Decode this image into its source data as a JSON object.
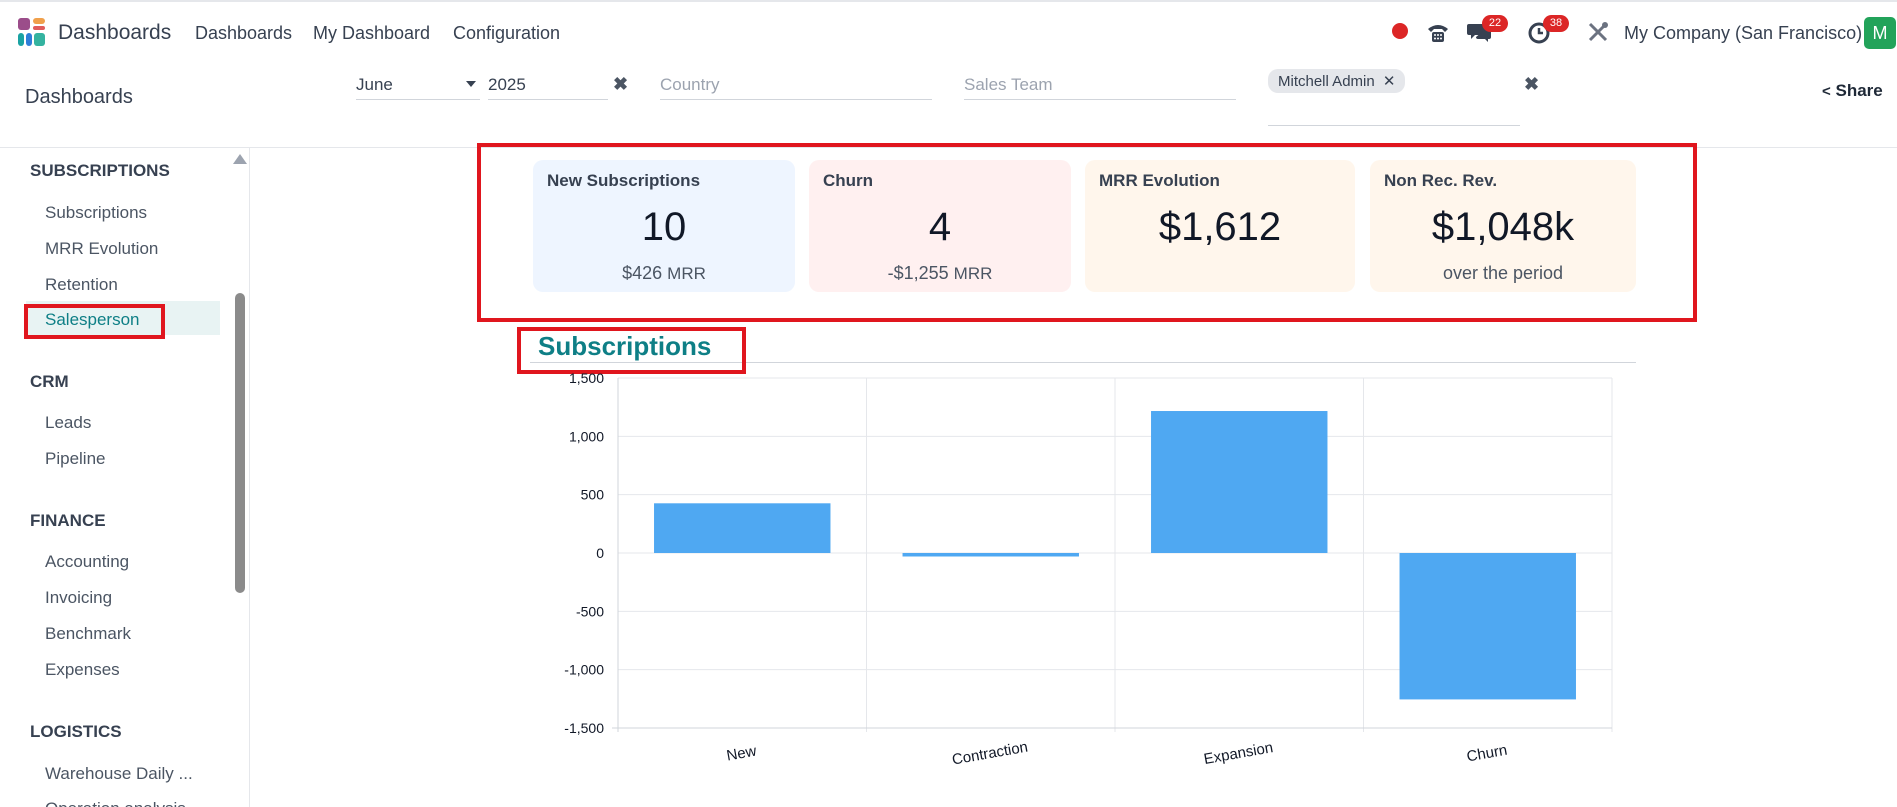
{
  "nav": {
    "app_name": "Dashboards",
    "items": [
      "Dashboards",
      "My Dashboard",
      "Configuration"
    ],
    "messages_badge": "22",
    "activities_badge": "38",
    "company": "My Company (San Francisco)",
    "avatar_letter": "M"
  },
  "control": {
    "title": "Dashboards",
    "month": "June",
    "year": "2025",
    "country_placeholder": "Country",
    "sales_team_placeholder": "Sales Team",
    "user_tag": "Mitchell Admin",
    "share_label": "Share"
  },
  "sidebar": {
    "sections": [
      {
        "title": "SUBSCRIPTIONS",
        "items": [
          "Subscriptions",
          "MRR Evolution",
          "Retention",
          "Salesperson"
        ]
      },
      {
        "title": "CRM",
        "items": [
          "Leads",
          "Pipeline"
        ]
      },
      {
        "title": "FINANCE",
        "items": [
          "Accounting",
          "Invoicing",
          "Benchmark",
          "Expenses"
        ]
      },
      {
        "title": "LOGISTICS",
        "items": [
          "Warehouse Daily ...",
          "Operation analysis"
        ]
      }
    ],
    "active_item": "Salesperson"
  },
  "kpis": [
    {
      "title": "New Subscriptions",
      "value": "10",
      "sub_value": "$426",
      "sub_unit": "MRR",
      "bg": "#eef5ff"
    },
    {
      "title": "Churn",
      "value": "4",
      "sub_value": "-$1,255",
      "sub_unit": "MRR",
      "bg": "#fff0f0"
    },
    {
      "title": "MRR Evolution",
      "value": "$1,612",
      "sub_value": "",
      "sub_unit": "",
      "bg": "#fff6ec"
    },
    {
      "title": "Non Rec. Rev.",
      "value": "$1,048k",
      "sub_value": "over the period",
      "sub_unit": "",
      "bg": "#fff6ec"
    }
  ],
  "section_heading": "Subscriptions",
  "colors": {
    "bar": "#4fa8f2",
    "highlight": "#e0161e",
    "heading": "#0e7f86"
  },
  "chart_data": {
    "type": "bar",
    "categories": [
      "New",
      "Contraction",
      "Expansion",
      "Churn"
    ],
    "values": [
      426,
      -30,
      1217,
      -1255
    ],
    "ylim": [
      -1500,
      1500
    ],
    "yticks": [
      1500,
      1000,
      500,
      0,
      -500,
      -1000,
      -1500
    ],
    "ytick_labels": [
      "1,500",
      "1,000",
      "500",
      "0",
      "-500",
      "-1,000",
      "-1,500"
    ],
    "grid": true,
    "legend": "none"
  }
}
